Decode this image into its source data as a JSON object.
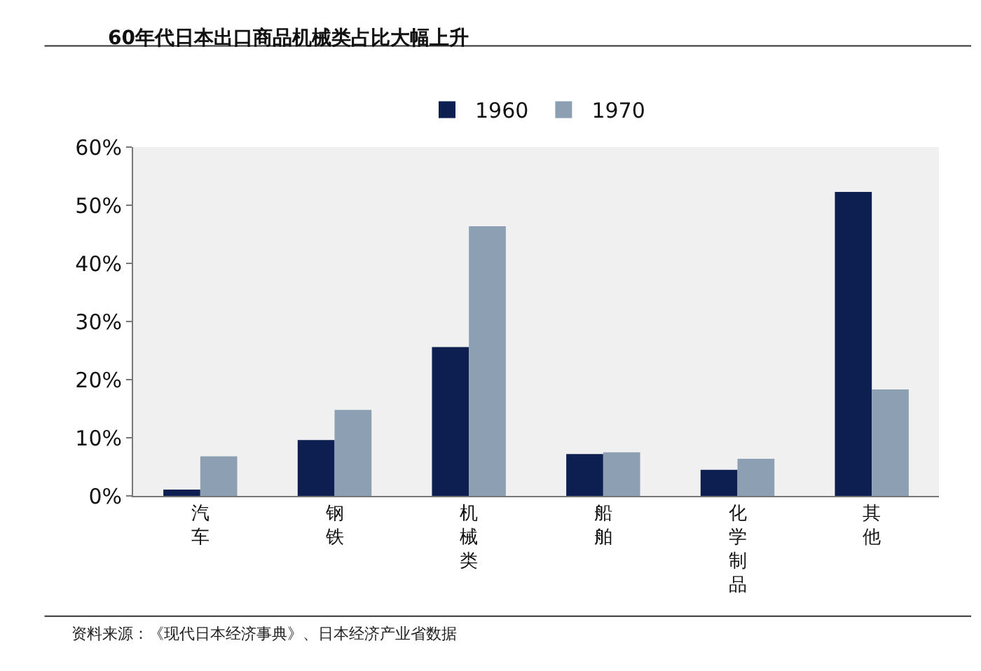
{
  "chart_data": {
    "type": "bar",
    "title": "60年代日本出口商品机械类占比大幅上升",
    "categories": [
      "汽车",
      "钢铁",
      "机械类",
      "船舶",
      "化学制品",
      "其他"
    ],
    "series": [
      {
        "name": "1960",
        "color": "#0c1f50",
        "values": [
          1.1,
          9.6,
          25.6,
          7.2,
          4.5,
          52.3
        ]
      },
      {
        "name": "1970",
        "color": "#8d9fb3",
        "values": [
          6.8,
          14.8,
          46.4,
          7.5,
          6.4,
          18.3
        ]
      }
    ],
    "ylim": [
      0,
      60
    ],
    "yticks": [
      {
        "value": 0,
        "label": "0%"
      },
      {
        "value": 10,
        "label": "10%"
      },
      {
        "value": 20,
        "label": "20%"
      },
      {
        "value": 30,
        "label": "30%"
      },
      {
        "value": 40,
        "label": "40%"
      },
      {
        "value": 50,
        "label": "50%"
      },
      {
        "value": 60,
        "label": "60%"
      }
    ],
    "grid": false,
    "legend": "top",
    "annotations": [
      "资料来源：《现代日本经济事典》、日本经济产业省数据"
    ]
  }
}
